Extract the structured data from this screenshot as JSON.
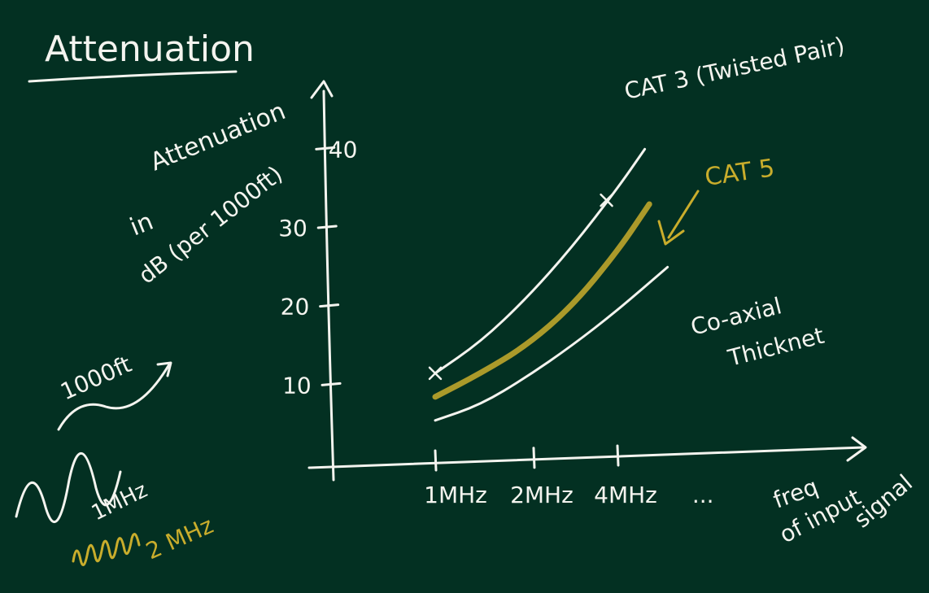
{
  "title": "Attenuation",
  "chart_data": {
    "type": "line",
    "ylabel_lines": [
      "Attenuation",
      "in",
      "dB (per 1000ft)"
    ],
    "xlabel_lines": [
      "freq",
      "of input",
      "signal"
    ],
    "x_ticks": [
      "1MHz",
      "2MHz",
      "4MHz",
      "..."
    ],
    "y_ticks": [
      10,
      20,
      30,
      40
    ],
    "ylim": [
      0,
      45
    ],
    "series": [
      {
        "name": "CAT 3 (Twisted Pair)",
        "color": "#f4f4ef",
        "x": [
          0,
          0.5,
          1,
          1.5,
          2,
          2.3
        ],
        "values": [
          11.5,
          15.5,
          21,
          27.5,
          35,
          40
        ]
      },
      {
        "name": "CAT 5",
        "color": "#c9ad2c",
        "x": [
          0,
          0.5,
          1,
          1.5,
          2,
          2.35
        ],
        "values": [
          8.5,
          11.5,
          15,
          20,
          27,
          33
        ]
      },
      {
        "name": "Co-axial Thicknet",
        "color": "#f4f4ef",
        "x": [
          0,
          0.5,
          1,
          1.5,
          2,
          2.55
        ],
        "values": [
          5.5,
          7.5,
          11,
          15,
          19.5,
          25
        ]
      }
    ]
  },
  "side_notes": {
    "distance_label": "1000ft",
    "low_freq_label": "1MHz",
    "high_freq_label": "2 MHz"
  }
}
